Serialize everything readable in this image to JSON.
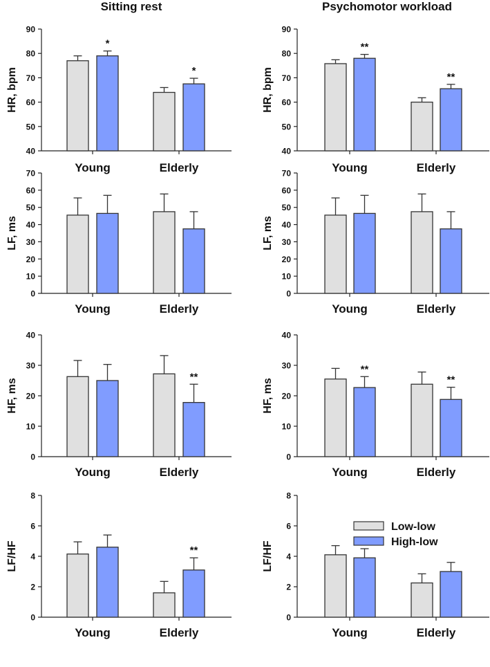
{
  "colors": {
    "low_low": "#e0e0e0",
    "high_low": "#809cff",
    "edge": "#333333"
  },
  "legend": [
    "Low-low",
    "High-low"
  ],
  "column_titles": [
    "Sitting rest",
    "Psychomotor workload"
  ],
  "chart_data": [
    {
      "type": "bar",
      "title": "Sitting rest",
      "ylabel": "HR, bpm",
      "ylim": [
        40,
        90
      ],
      "yticks": [
        40,
        50,
        60,
        70,
        80,
        90
      ],
      "categories": [
        "Young",
        "Elderly"
      ],
      "series": [
        {
          "name": "Low-low",
          "values": [
            77,
            64
          ],
          "errors": [
            2,
            2
          ]
        },
        {
          "name": "High-low",
          "values": [
            79,
            67.5
          ],
          "errors": [
            2,
            2.3
          ]
        }
      ],
      "annotations": [
        [
          "",
          ""
        ],
        [
          "*",
          "*"
        ]
      ]
    },
    {
      "type": "bar",
      "title": "Psychomotor workload",
      "ylabel": "HR, bpm",
      "ylim": [
        40,
        90
      ],
      "yticks": [
        40,
        50,
        60,
        70,
        80,
        90
      ],
      "categories": [
        "Young",
        "Elderly"
      ],
      "series": [
        {
          "name": "Low-low",
          "values": [
            75.8,
            60
          ],
          "errors": [
            1.6,
            1.8
          ]
        },
        {
          "name": "High-low",
          "values": [
            78,
            65.5
          ],
          "errors": [
            1.6,
            1.8
          ]
        }
      ],
      "annotations": [
        [
          "",
          ""
        ],
        [
          "**",
          "**"
        ]
      ]
    },
    {
      "type": "bar",
      "title": "Sitting rest",
      "ylabel": "LF, ms",
      "ylim": [
        0,
        70
      ],
      "yticks": [
        0,
        10,
        20,
        30,
        40,
        50,
        60,
        70
      ],
      "categories": [
        "Young",
        "Elderly"
      ],
      "series": [
        {
          "name": "Low-low",
          "values": [
            45.5,
            47.5
          ],
          "errors": [
            10,
            10.3
          ]
        },
        {
          "name": "High-low",
          "values": [
            46.5,
            37.5
          ],
          "errors": [
            10.5,
            10
          ]
        }
      ],
      "annotations": [
        [
          "",
          ""
        ],
        [
          "",
          ""
        ]
      ]
    },
    {
      "type": "bar",
      "title": "Psychomotor workload",
      "ylabel": "LF, ms",
      "ylim": [
        0,
        70
      ],
      "yticks": [
        0,
        10,
        20,
        30,
        40,
        50,
        60,
        70
      ],
      "categories": [
        "Young",
        "Elderly"
      ],
      "series": [
        {
          "name": "Low-low",
          "values": [
            45.5,
            47.5
          ],
          "errors": [
            10,
            10.3
          ]
        },
        {
          "name": "High-low",
          "values": [
            46.5,
            37.5
          ],
          "errors": [
            10.5,
            10
          ]
        }
      ],
      "annotations": [
        [
          "",
          ""
        ],
        [
          "",
          ""
        ]
      ]
    },
    {
      "type": "bar",
      "title": "Sitting rest",
      "ylabel": "HF, ms",
      "ylim": [
        0,
        40
      ],
      "yticks": [
        0,
        10,
        20,
        30,
        40
      ],
      "categories": [
        "Young",
        "Elderly"
      ],
      "series": [
        {
          "name": "Low-low",
          "values": [
            26.3,
            27.2
          ],
          "errors": [
            5.3,
            6
          ]
        },
        {
          "name": "High-low",
          "values": [
            25,
            17.8
          ],
          "errors": [
            5.3,
            6
          ]
        }
      ],
      "annotations": [
        [
          "",
          ""
        ],
        [
          "",
          "**"
        ]
      ]
    },
    {
      "type": "bar",
      "title": "Psychomotor workload",
      "ylabel": "HF, ms",
      "ylim": [
        0,
        40
      ],
      "yticks": [
        0,
        10,
        20,
        30,
        40
      ],
      "categories": [
        "Young",
        "Elderly"
      ],
      "series": [
        {
          "name": "Low-low",
          "values": [
            25.5,
            23.8
          ],
          "errors": [
            3.5,
            4
          ]
        },
        {
          "name": "High-low",
          "values": [
            22.7,
            18.8
          ],
          "errors": [
            3.6,
            4
          ]
        }
      ],
      "annotations": [
        [
          "",
          ""
        ],
        [
          "**",
          "**"
        ]
      ]
    },
    {
      "type": "bar",
      "title": "Sitting rest",
      "ylabel": "LF/HF",
      "ylim": [
        0,
        8
      ],
      "yticks": [
        0,
        2,
        4,
        6,
        8
      ],
      "categories": [
        "Young",
        "Elderly"
      ],
      "series": [
        {
          "name": "Low-low",
          "values": [
            4.15,
            1.6
          ],
          "errors": [
            0.8,
            0.75
          ]
        },
        {
          "name": "High-low",
          "values": [
            4.6,
            3.1
          ],
          "errors": [
            0.8,
            0.8
          ]
        }
      ],
      "annotations": [
        [
          "",
          ""
        ],
        [
          "",
          "**"
        ]
      ]
    },
    {
      "type": "bar",
      "title": "Psychomotor workload",
      "ylabel": "LF/HF",
      "ylim": [
        0,
        8
      ],
      "yticks": [
        0,
        2,
        4,
        6,
        8
      ],
      "categories": [
        "Young",
        "Elderly"
      ],
      "series": [
        {
          "name": "Low-low",
          "values": [
            4.1,
            2.25
          ],
          "errors": [
            0.6,
            0.6
          ]
        },
        {
          "name": "High-low",
          "values": [
            3.9,
            3.0
          ],
          "errors": [
            0.6,
            0.6
          ]
        }
      ],
      "annotations": [
        [
          "",
          ""
        ],
        [
          "",
          ""
        ]
      ],
      "legend_placement": "top-right"
    }
  ]
}
